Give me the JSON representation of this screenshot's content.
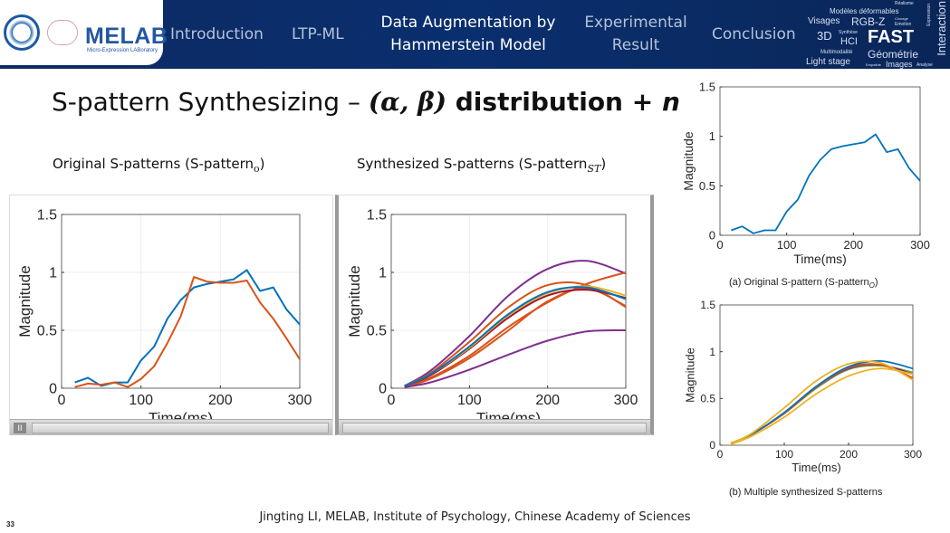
{
  "header": {
    "logo_text": "MELAB",
    "logo_subtitle": "Micro-Expression LABoratory",
    "nav": [
      {
        "label": "Introduction",
        "active": false
      },
      {
        "label": "LTP-ML",
        "active": false
      },
      {
        "label": "Data Augmentation by Hammerstein Model",
        "line1": "Data Augmentation by",
        "line2": "Hammerstein Model",
        "active": true
      },
      {
        "label": "Experimental Result",
        "line1": "Experimental",
        "line2": "Result",
        "active": false
      },
      {
        "label": "Conclusion",
        "active": false
      }
    ],
    "word_cloud": [
      "Réalisme",
      "Modèles déformables",
      "Visages",
      "RGB-Z",
      "Clonage",
      "Emotion",
      "Expression",
      "3D",
      "Synthèse",
      "HCI",
      "FAST",
      "Interaction",
      "Multimodalité",
      "Light stage",
      "Empathie",
      "Géométrie",
      "Images",
      "Analyse"
    ]
  },
  "slide": {
    "title_plain": "S-pattern Synthesizing – ",
    "title_math": "(α, β)",
    "title_bold": " distribution + ",
    "title_n": "n",
    "subtitle_left": "Original S-patterns (S-pattern",
    "subtitle_left_sub": "o",
    "subtitle_right": "Synthesized  S-patterns (S-pattern",
    "subtitle_right_sub": "ST",
    "close_paren": ")",
    "footer": "Jingting LI, MELAB, Institute of Psychology, Chinese Academy of Sciences",
    "page_number": "33",
    "pause_icon": "II"
  },
  "colors": {
    "blue": "#0072BD",
    "orange": "#D95319",
    "yellow": "#EDB120",
    "purple": "#7E2F8E",
    "green": "#77AC30",
    "header_bg": "#0a2f6e"
  },
  "chart_data": [
    {
      "type": "line",
      "xlabel": "Time(ms)",
      "ylabel": "Magnitude",
      "xlim": [
        0,
        300
      ],
      "ylim": [
        0,
        1.5
      ],
      "xticks": [
        "0",
        "100",
        "200",
        "300"
      ],
      "yticks": [
        "0",
        "0.5",
        "1",
        "1.5"
      ],
      "grid": true,
      "smooth": false,
      "x": [
        16.7,
        33.3,
        50,
        66.7,
        83.3,
        100,
        116.7,
        133.3,
        150,
        166.7,
        183.3,
        200,
        216.7,
        233.3,
        250,
        266.7,
        283.3,
        300
      ],
      "series": [
        {
          "color": "#0072BD",
          "values": [
            0.05,
            0.09,
            0.02,
            0.05,
            0.05,
            0.24,
            0.36,
            0.6,
            0.76,
            0.87,
            0.9,
            0.92,
            0.94,
            1.02,
            0.84,
            0.87,
            0.68,
            0.55
          ]
        },
        {
          "color": "#D95319",
          "values": [
            0.01,
            0.04,
            0.03,
            0.05,
            0.01,
            0.08,
            0.19,
            0.39,
            0.62,
            0.96,
            0.92,
            0.91,
            0.91,
            0.93,
            0.74,
            0.6,
            0.43,
            0.25
          ]
        }
      ]
    },
    {
      "type": "line",
      "xlabel": "Time(ms)",
      "ylabel": "Magnitude",
      "xlim": [
        0,
        300
      ],
      "ylim": [
        0,
        1.5
      ],
      "xticks": [
        "0",
        "100",
        "200",
        "300"
      ],
      "yticks": [
        "0",
        "0.5",
        "1",
        "1.5"
      ],
      "grid": true,
      "smooth": true,
      "x": [
        17,
        50,
        100,
        150,
        200,
        250,
        300
      ],
      "series": [
        {
          "color": "#7E2F8E",
          "values": [
            0.02,
            0.15,
            0.45,
            0.8,
            1.03,
            1.1,
            0.99
          ]
        },
        {
          "color": "#D95319",
          "values": [
            0.02,
            0.13,
            0.4,
            0.7,
            0.89,
            0.89,
            0.7
          ]
        },
        {
          "color": "#D95319",
          "values": [
            0.02,
            0.09,
            0.28,
            0.53,
            0.74,
            0.9,
            1.0
          ]
        },
        {
          "color": "#D95319",
          "values": [
            0.01,
            0.08,
            0.26,
            0.5,
            0.75,
            0.86,
            0.71
          ]
        },
        {
          "color": "#A2142F",
          "values": [
            0.02,
            0.11,
            0.34,
            0.61,
            0.8,
            0.85,
            0.78
          ]
        },
        {
          "color": "#EDB120",
          "values": [
            0.02,
            0.12,
            0.35,
            0.63,
            0.82,
            0.88,
            0.8
          ]
        },
        {
          "color": "#0072BD",
          "values": [
            0.02,
            0.12,
            0.36,
            0.64,
            0.83,
            0.87,
            0.77
          ]
        },
        {
          "color": "#7E2F8E",
          "values": [
            0.01,
            0.05,
            0.16,
            0.29,
            0.41,
            0.49,
            0.5
          ]
        }
      ]
    },
    {
      "type": "line",
      "xlabel": "Time(ms)",
      "ylabel": "Magnitude",
      "xlim": [
        0,
        300
      ],
      "ylim": [
        0,
        1.5
      ],
      "xticks": [
        "0",
        "100",
        "200",
        "300"
      ],
      "yticks": [
        "0",
        "0.5",
        "1",
        "1.5"
      ],
      "grid": false,
      "smooth": false,
      "caption": "(a) Original S-pattern (S-pattern",
      "caption_sub": "O",
      "x": [
        16.7,
        33.3,
        50,
        66.7,
        83.3,
        100,
        116.7,
        133.3,
        150,
        166.7,
        183.3,
        200,
        216.7,
        233.3,
        250,
        266.7,
        283.3,
        300
      ],
      "series": [
        {
          "color": "#0072BD",
          "values": [
            0.05,
            0.09,
            0.02,
            0.05,
            0.05,
            0.24,
            0.36,
            0.6,
            0.76,
            0.87,
            0.9,
            0.92,
            0.94,
            1.02,
            0.84,
            0.87,
            0.68,
            0.55
          ]
        }
      ]
    },
    {
      "type": "line",
      "xlabel": "Time(ms)",
      "ylabel": "Magnitude",
      "xlim": [
        0,
        300
      ],
      "ylim": [
        0,
        1.5
      ],
      "xticks": [
        "0",
        "100",
        "200",
        "300"
      ],
      "yticks": [
        "0",
        "0.5",
        "1",
        "1.5"
      ],
      "grid": false,
      "smooth": true,
      "caption": "(b) Multiple synthesized S-patterns",
      "x": [
        17,
        50,
        100,
        150,
        200,
        250,
        300
      ],
      "series": [
        {
          "color": "#77AC30",
          "values": [
            0.02,
            0.12,
            0.34,
            0.61,
            0.81,
            0.85,
            0.78
          ]
        },
        {
          "color": "#7E2F8E",
          "values": [
            0.02,
            0.12,
            0.34,
            0.62,
            0.82,
            0.86,
            0.76
          ]
        },
        {
          "color": "#D95319",
          "values": [
            0.02,
            0.12,
            0.34,
            0.62,
            0.83,
            0.86,
            0.72
          ]
        },
        {
          "color": "#0072BD",
          "values": [
            0.02,
            0.12,
            0.35,
            0.63,
            0.84,
            0.9,
            0.82
          ]
        },
        {
          "color": "#EDB120",
          "values": [
            0.02,
            0.13,
            0.4,
            0.69,
            0.87,
            0.88,
            0.7
          ]
        },
        {
          "color": "#EDB120",
          "values": [
            0.01,
            0.1,
            0.3,
            0.55,
            0.74,
            0.82,
            0.76
          ]
        }
      ]
    }
  ]
}
